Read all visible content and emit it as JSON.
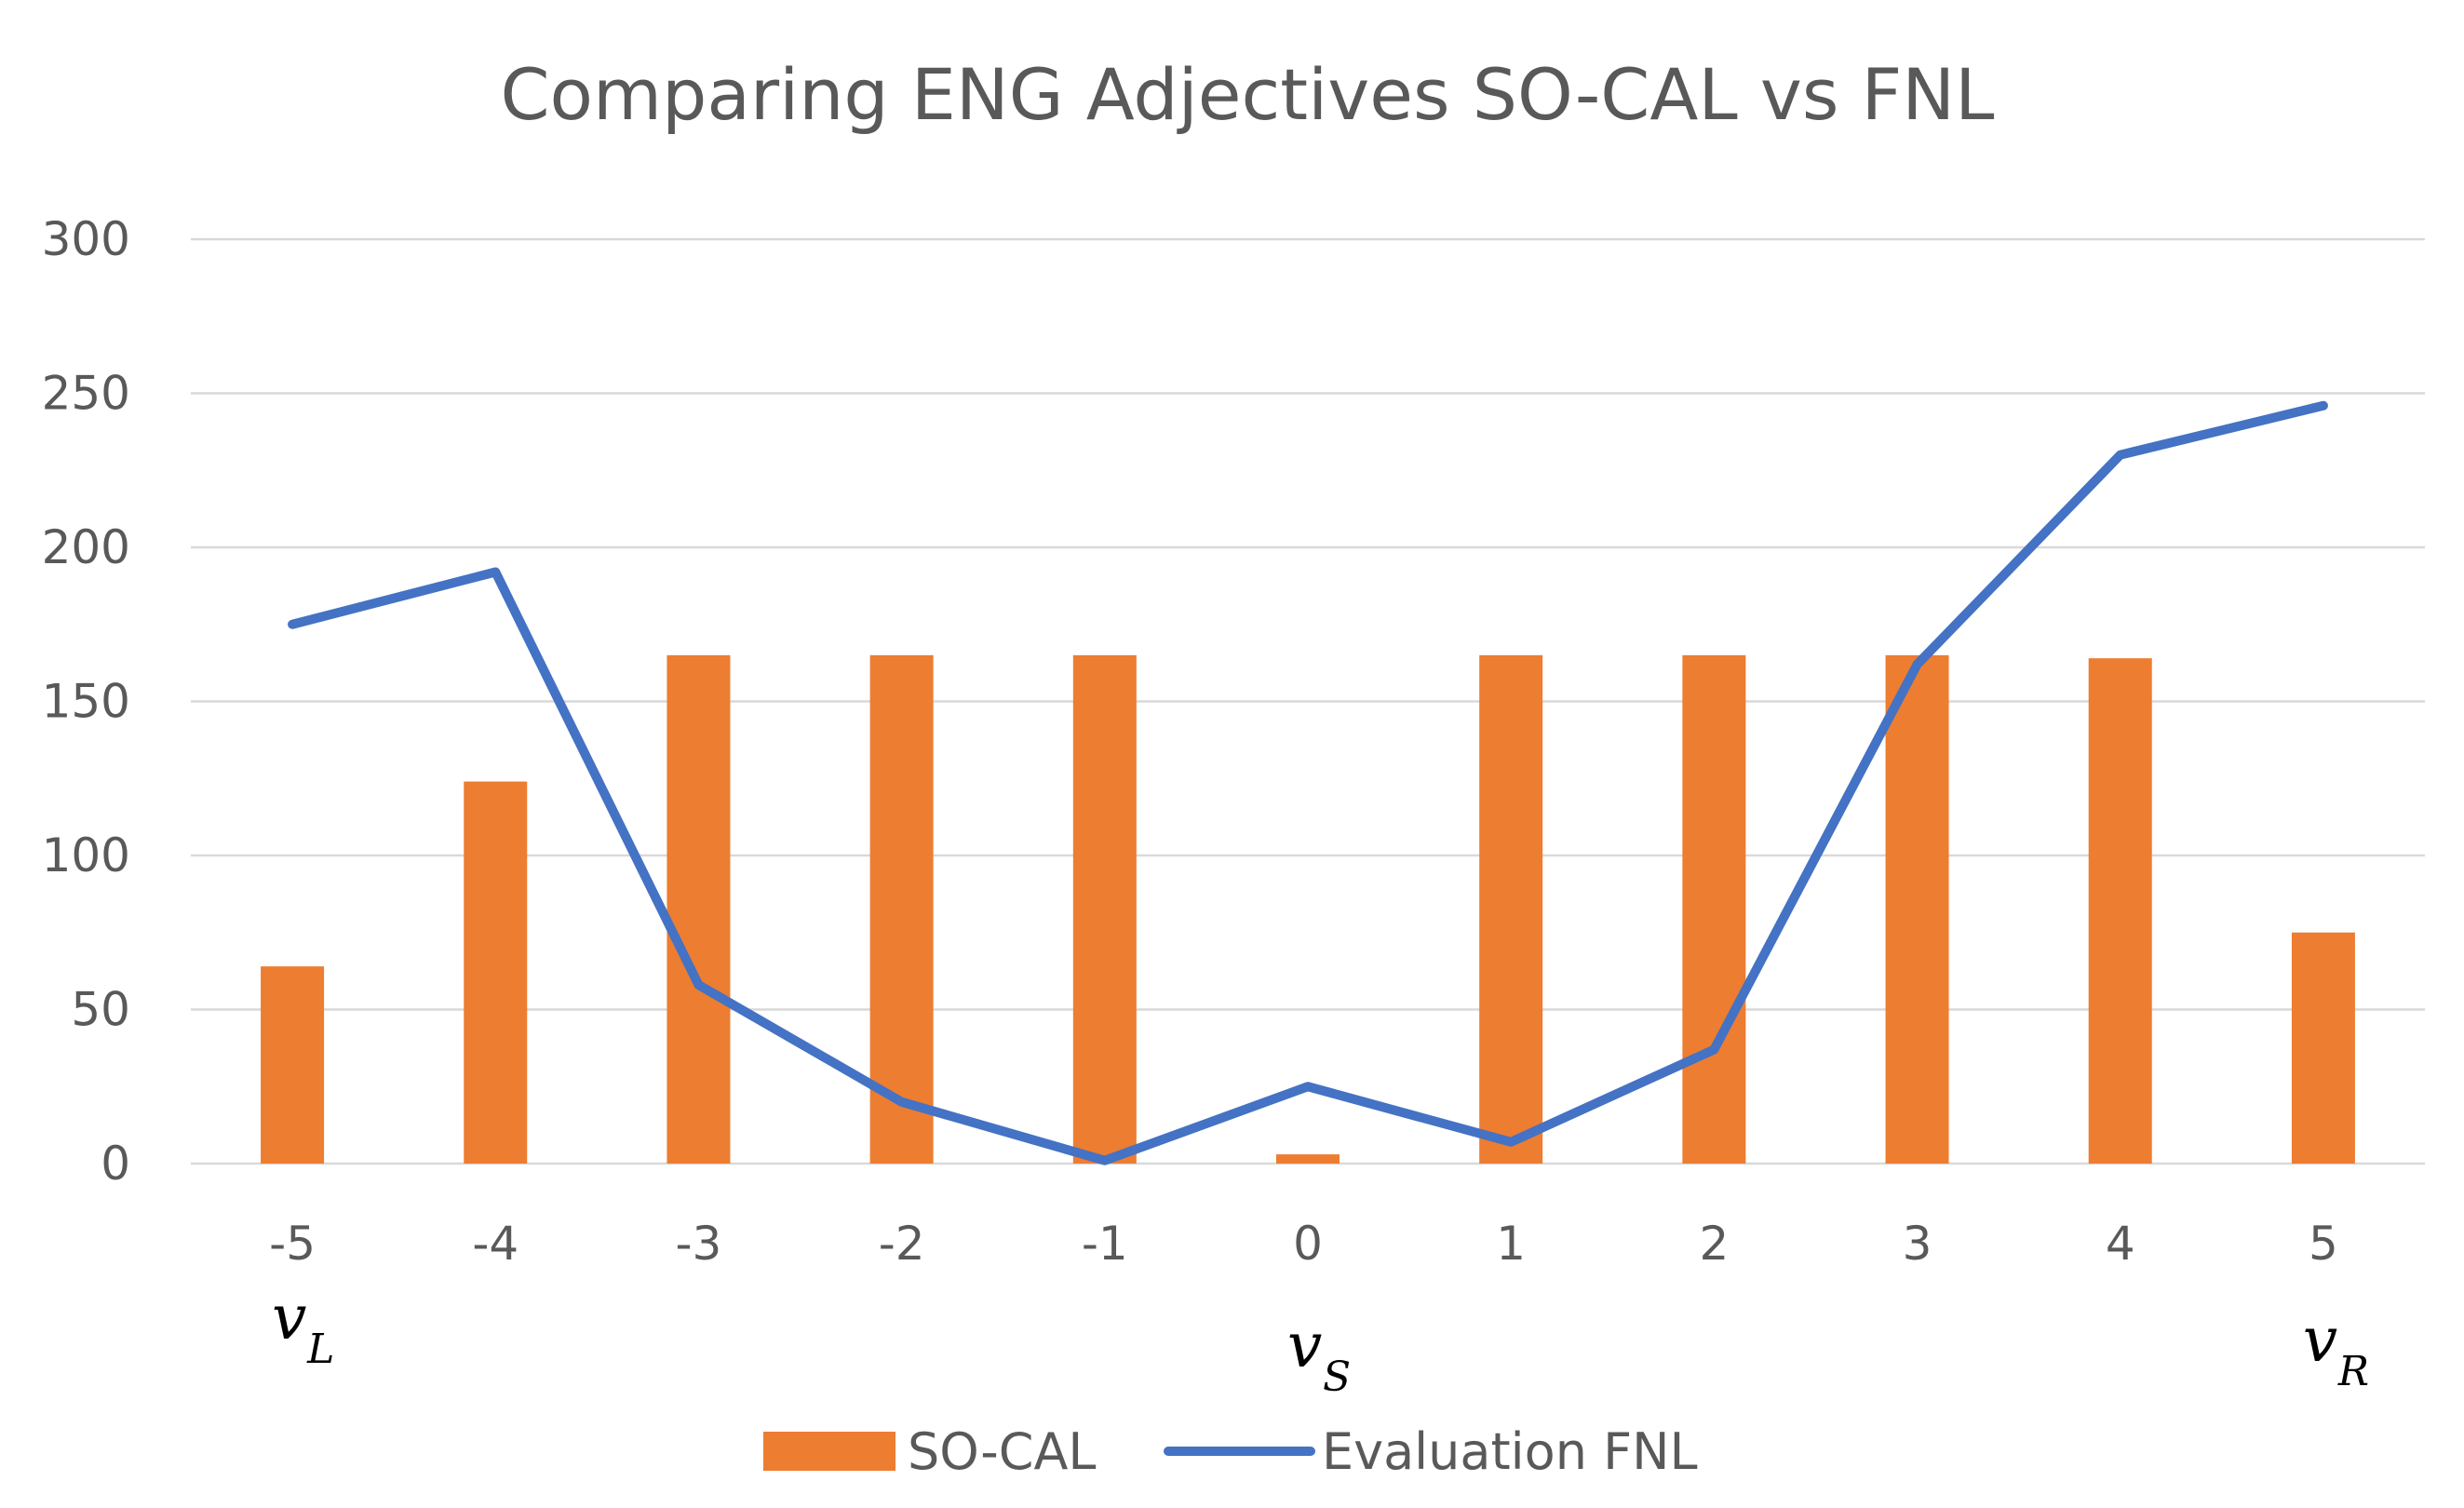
{
  "chart_data": {
    "type": "bar",
    "title": "Comparing ENG Adjectives SO-CAL vs FNL",
    "xlabel": "",
    "ylabel": "",
    "categories": [
      "-5",
      "-4",
      "-3",
      "-2",
      "-1",
      "0",
      "1",
      "2",
      "3",
      "4",
      "5"
    ],
    "ylim": [
      0,
      300
    ],
    "yticks": [
      0,
      50,
      100,
      150,
      200,
      250,
      300
    ],
    "grid": true,
    "legend_position": "bottom",
    "series": [
      {
        "name": "SO-CAL",
        "kind": "bar",
        "color": "#ED7D31",
        "values": [
          64,
          124,
          165,
          165,
          165,
          3,
          165,
          165,
          165,
          164,
          75
        ]
      },
      {
        "name": "Evaluation FNL",
        "kind": "line",
        "color": "#4472C4",
        "values": [
          175,
          192,
          58,
          20,
          1,
          25,
          7,
          37,
          162,
          230,
          246
        ]
      }
    ],
    "annotations": [
      {
        "category": "-5",
        "symbol": "v",
        "subscript": "L"
      },
      {
        "category": "0",
        "symbol": "v",
        "subscript": "S"
      },
      {
        "category": "5",
        "symbol": "v",
        "subscript": "R"
      }
    ]
  }
}
